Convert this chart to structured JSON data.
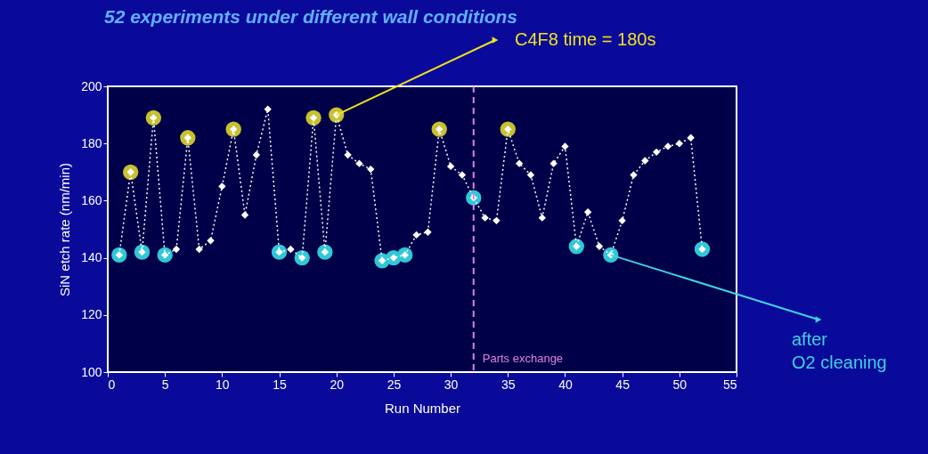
{
  "chart_data": {
    "type": "line",
    "title": "52 experiments under different wall conditions",
    "xlabel": "Run Number",
    "ylabel": "SiN etch rate (nm/min)",
    "x": [
      1,
      2,
      3,
      4,
      5,
      6,
      7,
      8,
      9,
      10,
      11,
      12,
      13,
      14,
      15,
      16,
      17,
      18,
      19,
      20,
      21,
      22,
      23,
      24,
      25,
      26,
      27,
      28,
      29,
      30,
      31,
      32,
      33,
      34,
      35,
      36,
      37,
      38,
      39,
      40,
      41,
      42,
      43,
      44,
      45,
      46,
      47,
      48,
      49,
      50,
      51,
      52
    ],
    "series": [
      {
        "color": "#ffffff",
        "marker": "diamond",
        "line_style": "dotted",
        "values": [
          141,
          170,
          142,
          189,
          141,
          143,
          182,
          143,
          146,
          165,
          185,
          155,
          176,
          192,
          142,
          143,
          140,
          189,
          142,
          190,
          176,
          173,
          171,
          139,
          140,
          141,
          148,
          149,
          185,
          172,
          169,
          161,
          154,
          153,
          185,
          173,
          169,
          154,
          173,
          179,
          144,
          156,
          144,
          141,
          153,
          169,
          174,
          177,
          179,
          180,
          182,
          143
        ]
      },
      {
        "type": "scatter",
        "color": "#c8c030",
        "marker": "circle",
        "x": [
          2,
          4,
          7,
          11,
          18,
          20,
          29,
          35
        ],
        "values": [
          170,
          189,
          182,
          185,
          189,
          190,
          185,
          185
        ]
      },
      {
        "type": "scatter",
        "color": "#30c8d8",
        "marker": "circle",
        "x": [
          1,
          3,
          5,
          15,
          17,
          19,
          24,
          25,
          26,
          32,
          41,
          44,
          52
        ],
        "values": [
          141,
          142,
          141,
          142,
          140,
          142,
          139,
          140,
          141,
          161,
          144,
          141,
          143
        ]
      }
    ],
    "xlim": [
      0,
      55
    ],
    "xticks": [
      0,
      5,
      10,
      15,
      20,
      25,
      30,
      35,
      40,
      45,
      50,
      55
    ],
    "ylim": [
      100,
      200
    ],
    "yticks": [
      100,
      120,
      140,
      160,
      180,
      200
    ],
    "grid": false,
    "ref_lines": [
      {
        "axis": "x",
        "value": 32,
        "label": "Parts exchange",
        "color": "#e080e0",
        "line_style": "dashed"
      }
    ],
    "annotations": [
      {
        "text": "C4F8 time = 180s",
        "x": 20,
        "y": 190
      },
      {
        "text": "after\nO2 cleaning",
        "x": 44,
        "y": 141
      }
    ]
  }
}
